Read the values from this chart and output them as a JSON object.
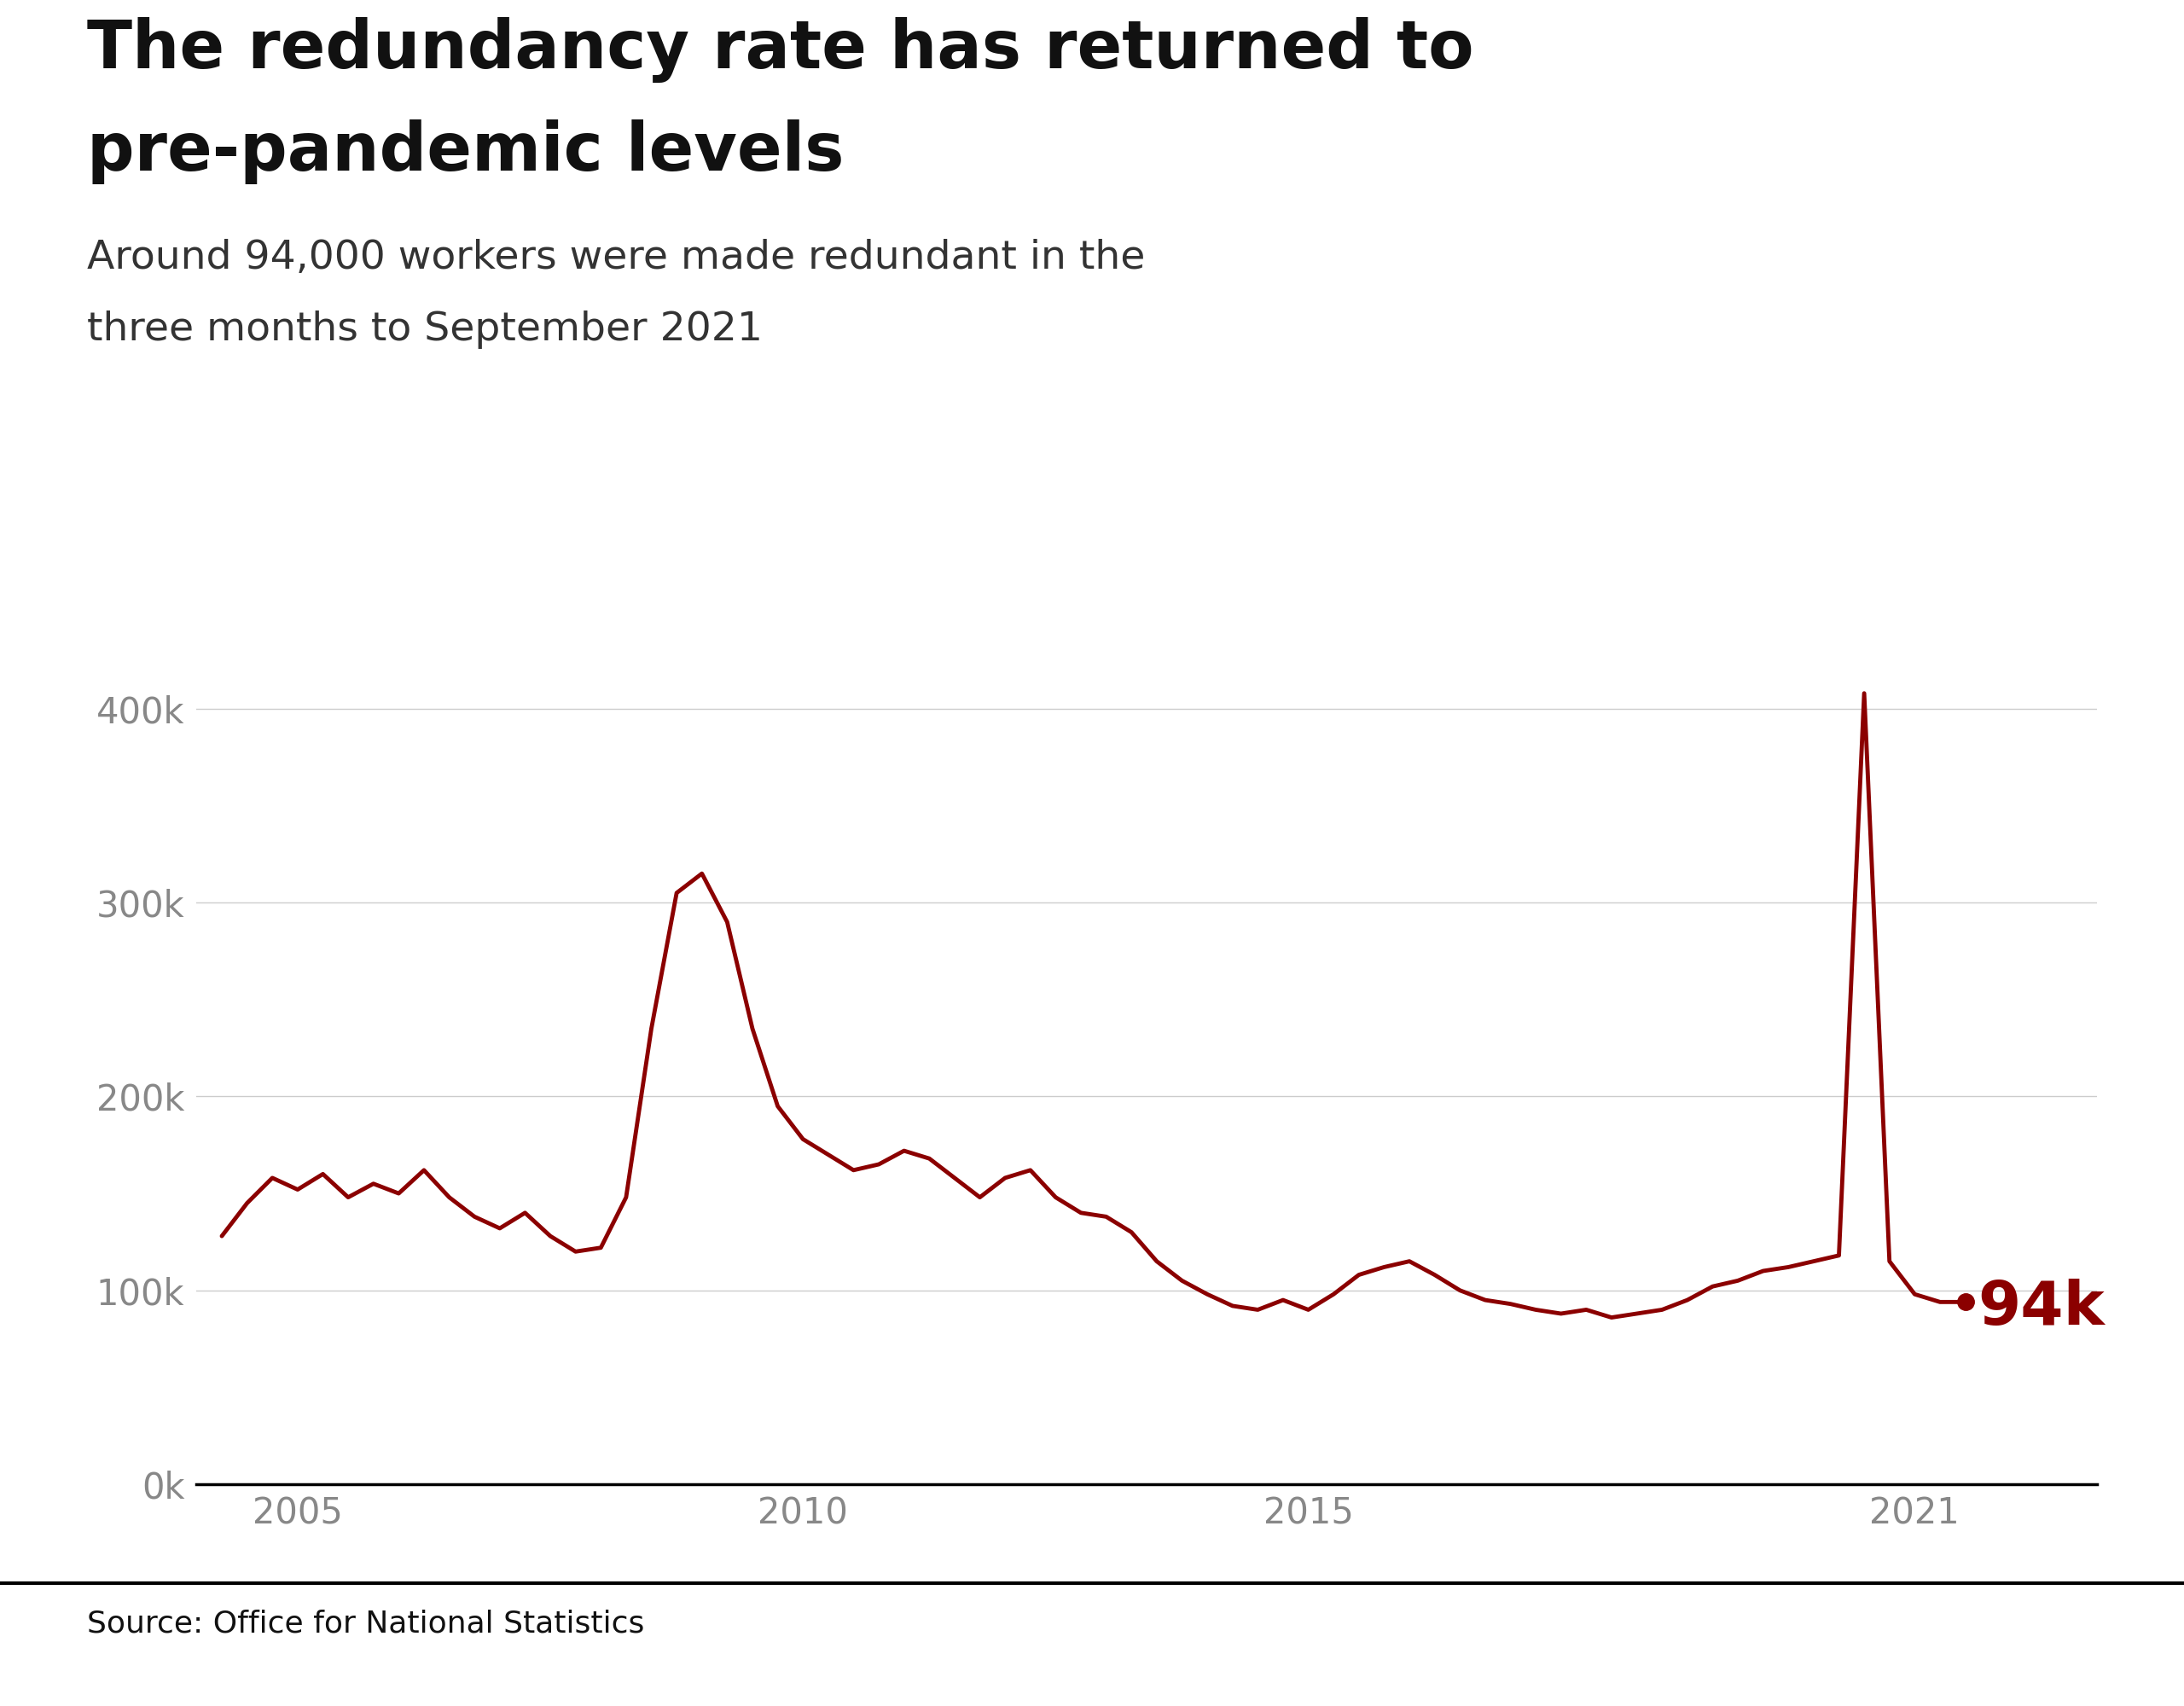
{
  "title_line1": "The redundancy rate has returned to",
  "title_line2": "pre-pandemic levels",
  "subtitle_line1": "Around 94,000 workers were made redundant in the",
  "subtitle_line2": "three months to September 2021",
  "source": "Source: Office for National Statistics",
  "line_color": "#8B0000",
  "line_width": 3.5,
  "background_color": "#ffffff",
  "grid_color": "#cccccc",
  "annotation_text": "94k",
  "annotation_color": "#8B0000",
  "title_fontsize": 56,
  "subtitle_fontsize": 34,
  "tick_fontsize": 30,
  "annotation_fontsize": 52,
  "source_fontsize": 26,
  "ytick_labels": [
    "0k",
    "100k",
    "200k",
    "300k",
    "400k"
  ],
  "ytick_values": [
    0,
    100000,
    200000,
    300000,
    400000
  ],
  "xtick_labels": [
    "2005",
    "2010",
    "2015",
    "2021"
  ],
  "xtick_values": [
    2005,
    2010,
    2015,
    2021
  ],
  "xlim": [
    2004.0,
    2022.8
  ],
  "ylim": [
    0,
    440000
  ],
  "data_x": [
    2004.25,
    2004.5,
    2004.75,
    2005.0,
    2005.25,
    2005.5,
    2005.75,
    2006.0,
    2006.25,
    2006.5,
    2006.75,
    2007.0,
    2007.25,
    2007.5,
    2007.75,
    2008.0,
    2008.25,
    2008.5,
    2008.75,
    2009.0,
    2009.25,
    2009.5,
    2009.75,
    2010.0,
    2010.25,
    2010.5,
    2010.75,
    2011.0,
    2011.25,
    2011.5,
    2011.75,
    2012.0,
    2012.25,
    2012.5,
    2012.75,
    2013.0,
    2013.25,
    2013.5,
    2013.75,
    2014.0,
    2014.25,
    2014.5,
    2014.75,
    2015.0,
    2015.25,
    2015.5,
    2015.75,
    2016.0,
    2016.25,
    2016.5,
    2016.75,
    2017.0,
    2017.25,
    2017.5,
    2017.75,
    2018.0,
    2018.25,
    2018.5,
    2018.75,
    2019.0,
    2019.25,
    2019.5,
    2019.75,
    2020.0,
    2020.25,
    2020.5,
    2020.75,
    2021.0,
    2021.25,
    2021.5
  ],
  "data_y": [
    128000,
    145000,
    158000,
    152000,
    160000,
    148000,
    155000,
    150000,
    162000,
    148000,
    138000,
    132000,
    140000,
    128000,
    120000,
    122000,
    148000,
    235000,
    305000,
    315000,
    290000,
    235000,
    195000,
    178000,
    170000,
    162000,
    165000,
    172000,
    168000,
    158000,
    148000,
    158000,
    162000,
    148000,
    140000,
    138000,
    130000,
    115000,
    105000,
    98000,
    92000,
    90000,
    95000,
    90000,
    98000,
    108000,
    112000,
    115000,
    108000,
    100000,
    95000,
    93000,
    90000,
    88000,
    90000,
    86000,
    88000,
    90000,
    95000,
    102000,
    105000,
    110000,
    112000,
    115000,
    118000,
    408000,
    115000,
    98000,
    94000,
    94000
  ]
}
